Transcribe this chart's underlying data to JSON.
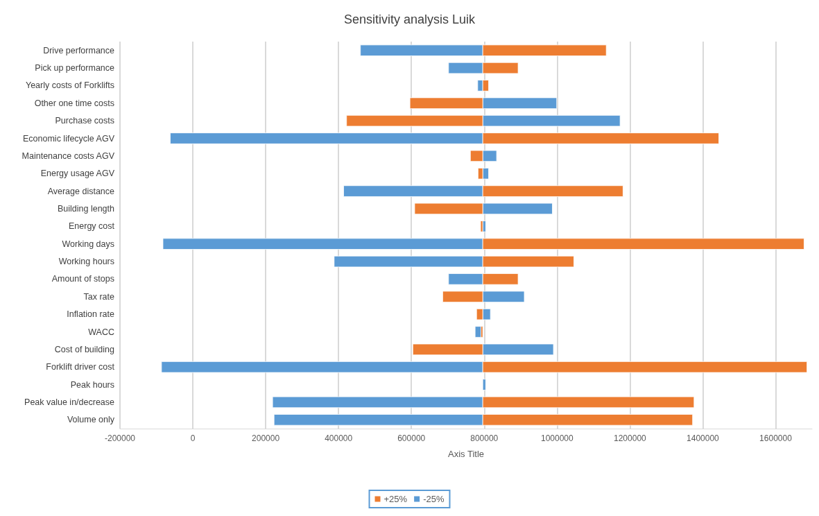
{
  "chart_data": {
    "type": "bar",
    "orientation": "horizontal",
    "title": "Sensitivity analysis Luik",
    "xlabel": "Axis Title",
    "categories": [
      "Drive performance",
      "Pick up performance",
      "Yearly costs of Forklifts",
      "Other one time costs",
      "Purchase costs",
      "Economic lifecycle AGV",
      "Maintenance costs AGV",
      "Energy usage AGV",
      "Average distance",
      "Building length",
      "Energy cost",
      "Working days",
      "Working hours",
      "Amount of stops",
      "Tax rate",
      "Inflation rate",
      "WACC",
      "Cost of building",
      "Forklift driver cost",
      "Peak hours",
      "Peak value in/decrease",
      "Volume only"
    ],
    "series": [
      {
        "name": "+25%",
        "color": "#ed7d31",
        "base": [
          796000,
          796000,
          796000,
          796000,
          796000,
          796000,
          796000,
          796000,
          796000,
          796000,
          796000,
          796000,
          796000,
          796000,
          796000,
          796000,
          796000,
          796000,
          796000,
          null,
          796000,
          796000
        ],
        "values": [
          339000,
          97000,
          16000,
          -200000,
          -374000,
          648000,
          -34000,
          -13000,
          385000,
          -187000,
          -6000,
          882000,
          250000,
          97000,
          -110000,
          -17000,
          -5000,
          -192000,
          890000,
          null,
          580000,
          576000
        ]
      },
      {
        "name": "-25%",
        "color": "#5b9bd5",
        "base": [
          796000,
          796000,
          796000,
          796000,
          796000,
          796000,
          796000,
          796000,
          796000,
          796000,
          796000,
          796000,
          796000,
          796000,
          796000,
          796000,
          796000,
          796000,
          796000,
          796000,
          796000,
          796000
        ],
        "values": [
          -336000,
          -94000,
          -14000,
          203000,
          377000,
          -858000,
          38000,
          16000,
          -382000,
          191000,
          8000,
          -878000,
          -408000,
          -94000,
          114000,
          21000,
          -21000,
          194000,
          -882000,
          8000,
          -577000,
          -573000
        ]
      }
    ],
    "xlim": [
      -200000,
      1700000
    ],
    "xticks": [
      -200000,
      0,
      200000,
      400000,
      600000,
      800000,
      1000000,
      1200000,
      1400000,
      1600000
    ],
    "grid": "x",
    "legend": "bottom"
  }
}
